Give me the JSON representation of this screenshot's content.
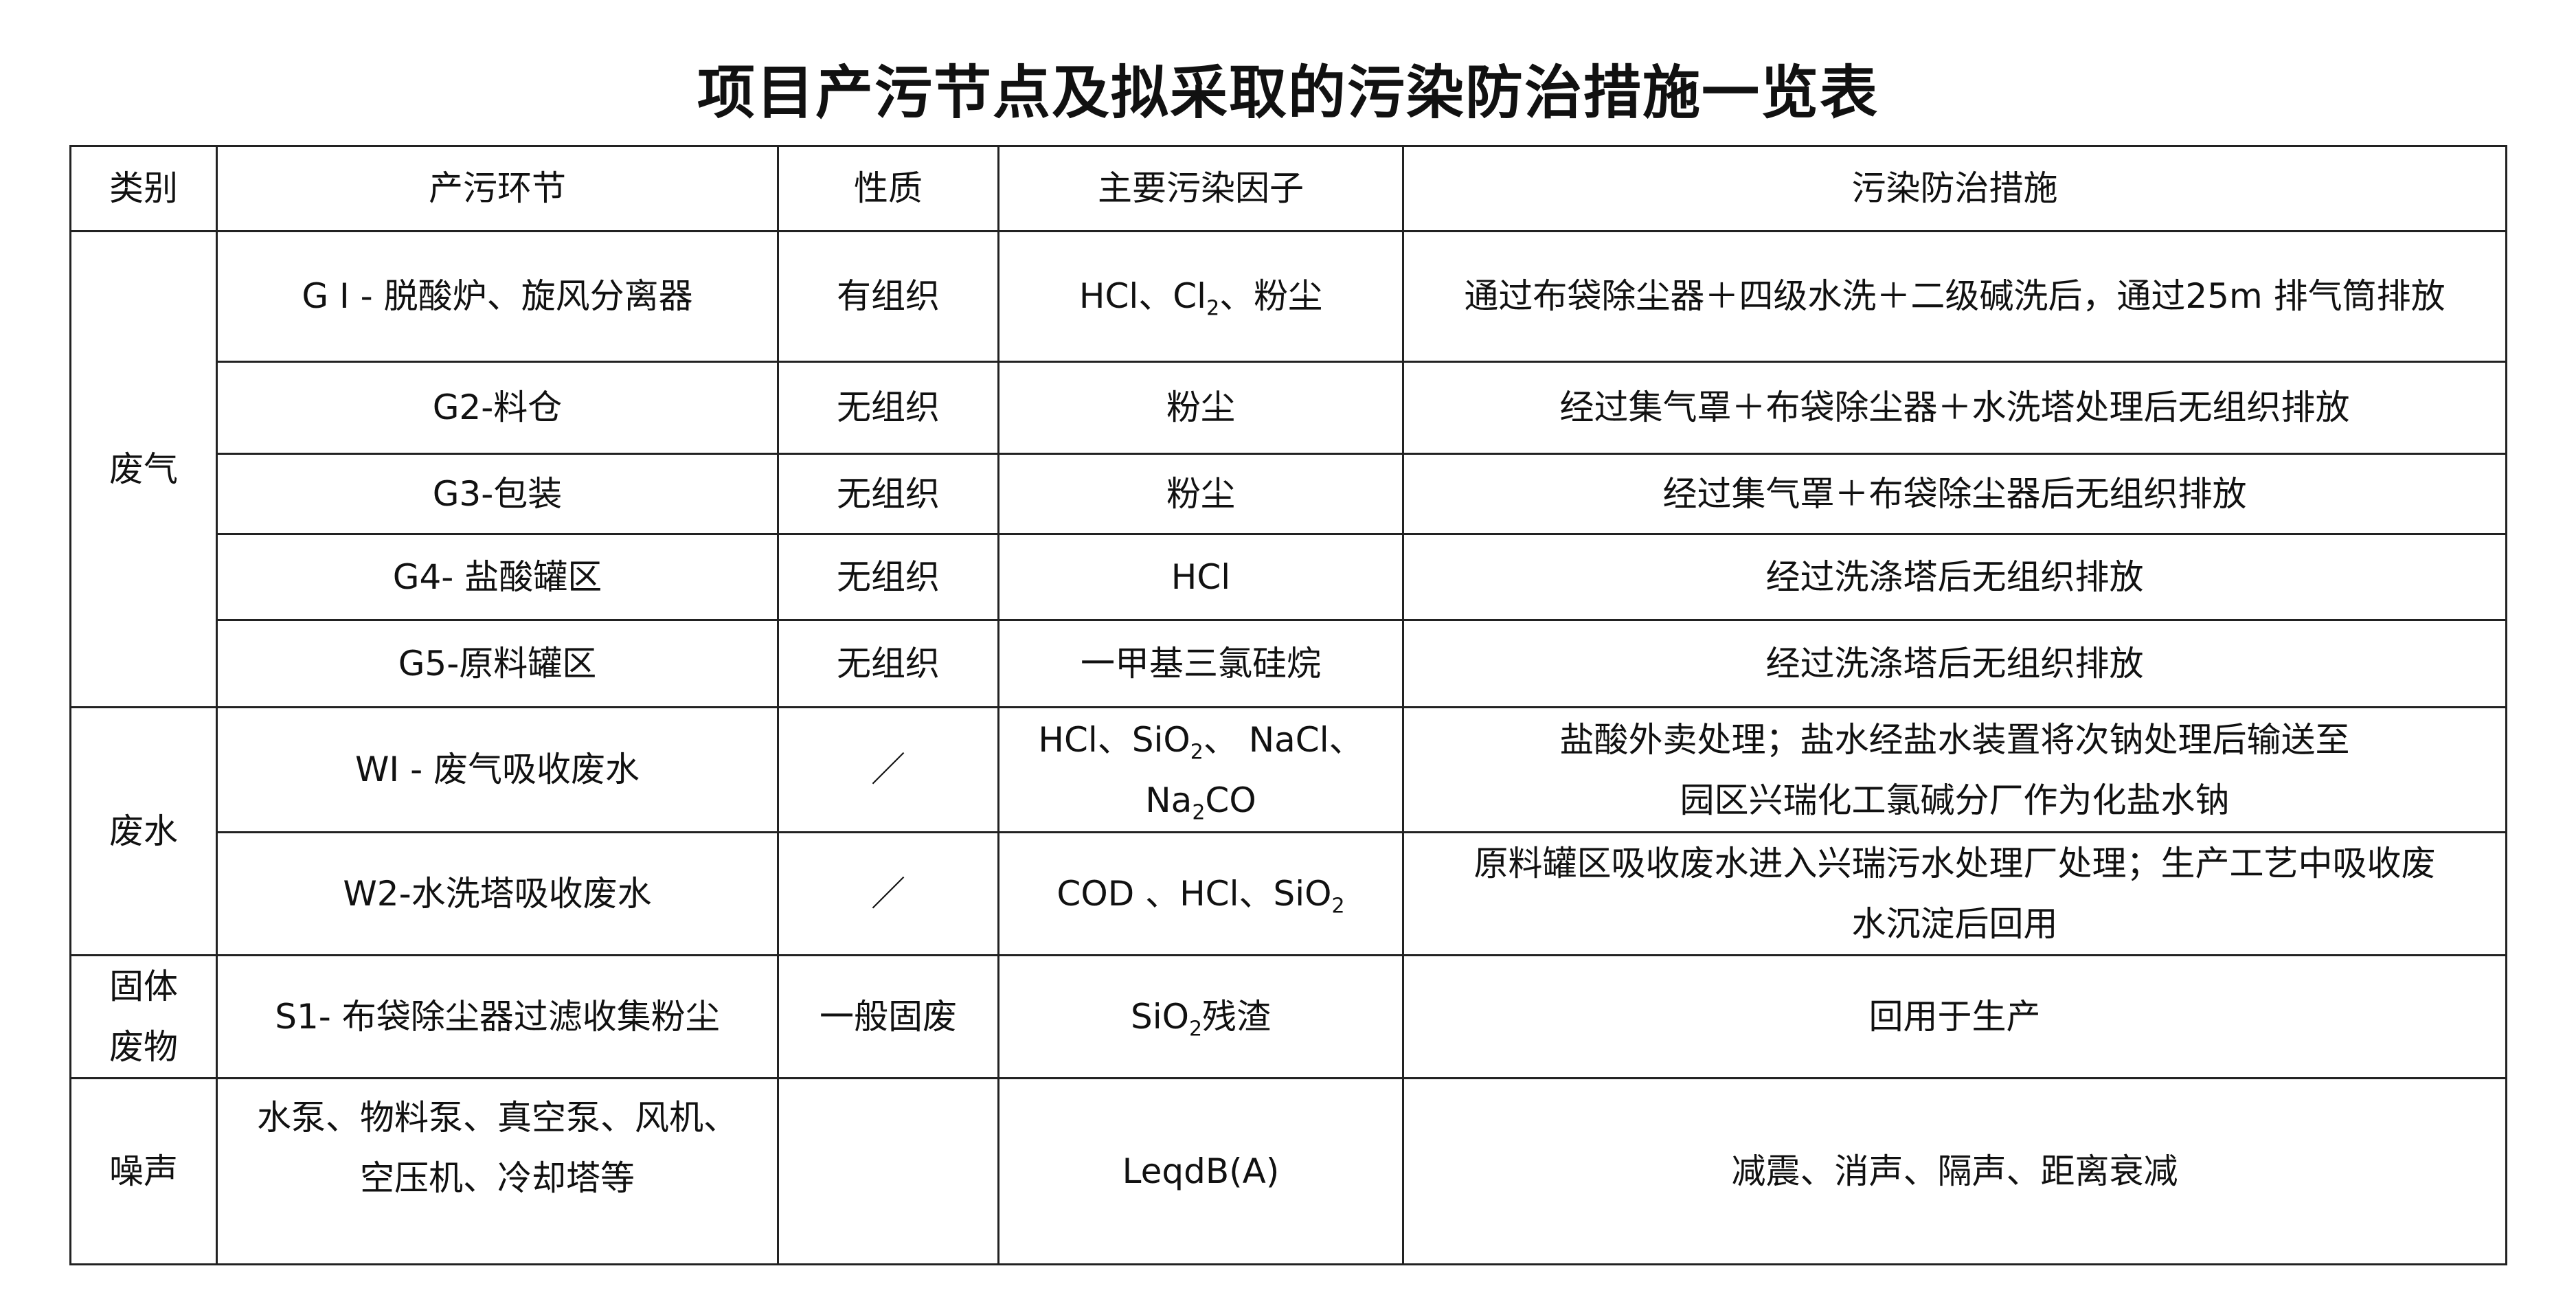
{
  "title": "项目产污节点及拟采取的污染防治措施一览表",
  "headers": [
    "类别",
    "产污环节",
    "性质",
    "主要污染因子",
    "污染防治措施"
  ],
  "categories": {
    "gas": "废气",
    "water": "废水",
    "solid_1": "固体",
    "solid_2": "废物",
    "noise": "噪声"
  },
  "rows": {
    "g1": {
      "source": "G I - 脱酸炉、旋风分离器",
      "nature": "有组织",
      "factor_a": "HCl、Cl",
      "factor_sub": "2",
      "factor_b": "、粉尘",
      "measure": "通过布袋除尘器＋四级水洗＋二级碱洗后，通过25m 排气筒排放"
    },
    "g2": {
      "source": "G2-料仓",
      "nature": "无组织",
      "factor": "粉尘",
      "measure": "经过集气罩＋布袋除尘器＋水洗塔处理后无组织排放"
    },
    "g3": {
      "source": "G3-包装",
      "nature": "无组织",
      "factor": "粉尘",
      "measure": "经过集气罩＋布袋除尘器后无组织排放"
    },
    "g4": {
      "source": "G4- 盐酸罐区",
      "nature": "无组织",
      "factor": "HCl",
      "measure": "经过洗涤塔后无组织排放"
    },
    "g5": {
      "source": "G5-原料罐区",
      "nature": "无组织",
      "factor": "一甲基三氯硅烷",
      "measure": "经过洗涤塔后无组织排放"
    },
    "w1": {
      "source": "WI - 废气吸收废水",
      "nature": "／",
      "factor_a": "HCl、SiO",
      "factor_sub": "2",
      "factor_b": "、 NaCl、",
      "factor2_a": "Na",
      "factor2_sub": "2",
      "factor2_b": "CO",
      "measure_1": "盐酸外卖处理；盐水经盐水装置将次钠处理后输送至",
      "measure_2": "园区兴瑞化工氯碱分厂作为化盐水钠"
    },
    "w2": {
      "source": "W2-水洗塔吸收废水",
      "nature": "／",
      "factor_a": "COD 、HCl、SiO",
      "factor_sub": "2",
      "measure_1": "原料罐区吸收废水进入兴瑞污水处理厂处理；生产工艺中吸收废",
      "measure_2": "水沉淀后回用"
    },
    "s1": {
      "source": "S1- 布袋除尘器过滤收集粉尘",
      "nature": "一般固废",
      "factor_a": "SiO",
      "factor_sub": "2",
      "factor_b": "残渣",
      "measure": "回用于生产"
    },
    "n1": {
      "source_1": "水泵、物料泵、真空泵、风机、",
      "source_2": "空压机、冷却塔等",
      "nature": "",
      "factor": "LeqdB(A)",
      "measure": "减震、消声、隔声、距离衰减"
    }
  }
}
